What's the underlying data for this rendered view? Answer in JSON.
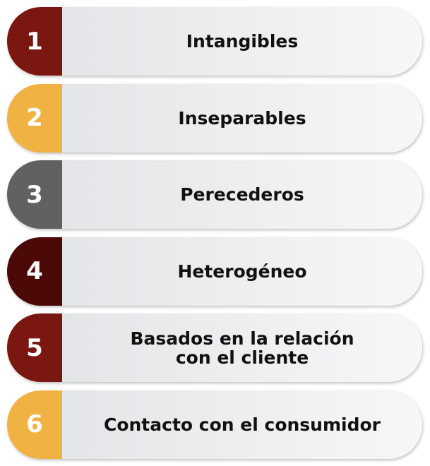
{
  "items": [
    {
      "number": "1",
      "color": "#7a1710",
      "lines": [
        "Intangibles"
      ]
    },
    {
      "number": "2",
      "color": "#f0b242",
      "lines": [
        "Inseparables"
      ]
    },
    {
      "number": "3",
      "color": "#616161",
      "lines": [
        "Perecederos"
      ]
    },
    {
      "number": "4",
      "color": "#4b0a07",
      "lines": [
        "Heterogéneo"
      ]
    },
    {
      "number": "5",
      "color": "#7a1710",
      "lines": [
        "Basados en la relación",
        "con el cliente"
      ]
    },
    {
      "number": "6",
      "color": "#f0b242",
      "lines": [
        "Contacto con el consumidor"
      ]
    }
  ]
}
